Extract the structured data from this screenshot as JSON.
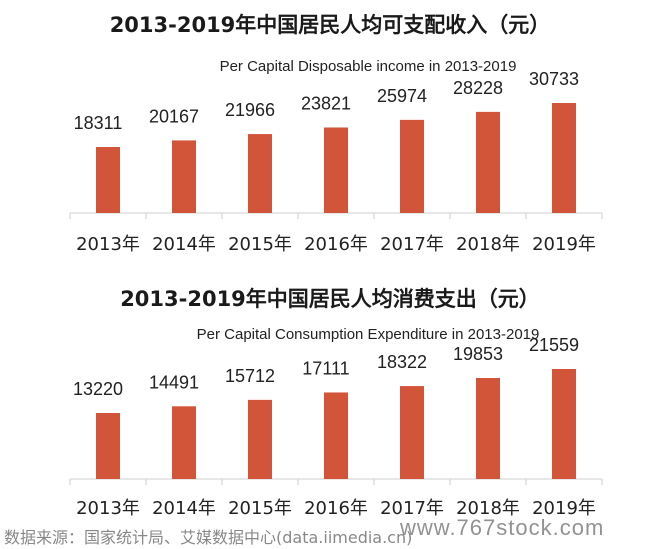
{
  "chart_data": [
    {
      "type": "bar",
      "title": "2013-2019年中国居民人均可支配收入（元）",
      "subtitle": "Per Capital Disposable income in 2013-2019",
      "categories": [
        "2013年",
        "2014年",
        "2015年",
        "2016年",
        "2017年",
        "2018年",
        "2019年"
      ],
      "values": [
        18311,
        20167,
        21966,
        23821,
        25974,
        28228,
        30733
      ],
      "color": "#D2553A",
      "grid": false,
      "legend": "none"
    },
    {
      "type": "bar",
      "title": "2013-2019年中国居民人均消费支出（元）",
      "subtitle": "Per Capital Consumption Expenditure in 2013-2019",
      "categories": [
        "2013年",
        "2014年",
        "2015年",
        "2016年",
        "2017年",
        "2018年",
        "2019年"
      ],
      "values": [
        13220,
        14491,
        15712,
        17111,
        18322,
        19853,
        21559
      ],
      "color": "#D2553A",
      "grid": false,
      "legend": "none"
    }
  ],
  "footer": {
    "source": "数据来源：国家统计局、艾媒数据中心(data.iimedia.cn)",
    "watermark": "www.767stock.com"
  }
}
